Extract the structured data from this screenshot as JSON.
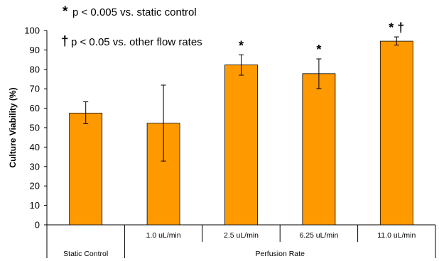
{
  "chart_data": {
    "type": "bar",
    "ylabel": "Culture Viability (%)",
    "ylim": [
      0,
      100
    ],
    "yticks": [
      0,
      10,
      20,
      30,
      40,
      50,
      60,
      70,
      80,
      90,
      100
    ],
    "categories": [
      "",
      "1.0 uL/min",
      "2.5 uL/min",
      "6.25 uL/min",
      "11.0 uL/min"
    ],
    "group_labels": [
      "Static Control",
      "Perfusion Rate"
    ],
    "values": [
      57.5,
      52.3,
      82.3,
      77.8,
      94.5
    ],
    "error_low": [
      5.5,
      19.5,
      5.3,
      7.7,
      2.0
    ],
    "error_high": [
      5.8,
      19.6,
      5.2,
      7.6,
      2.2
    ],
    "annotations": [
      "",
      "",
      "*",
      "*",
      "* †"
    ],
    "bar_color": "#FF9900",
    "legend": [
      {
        "symbol": "*",
        "text": "p < 0.005 vs. static control"
      },
      {
        "symbol": "†",
        "text": "p < 0.05 vs. other flow rates"
      }
    ]
  }
}
